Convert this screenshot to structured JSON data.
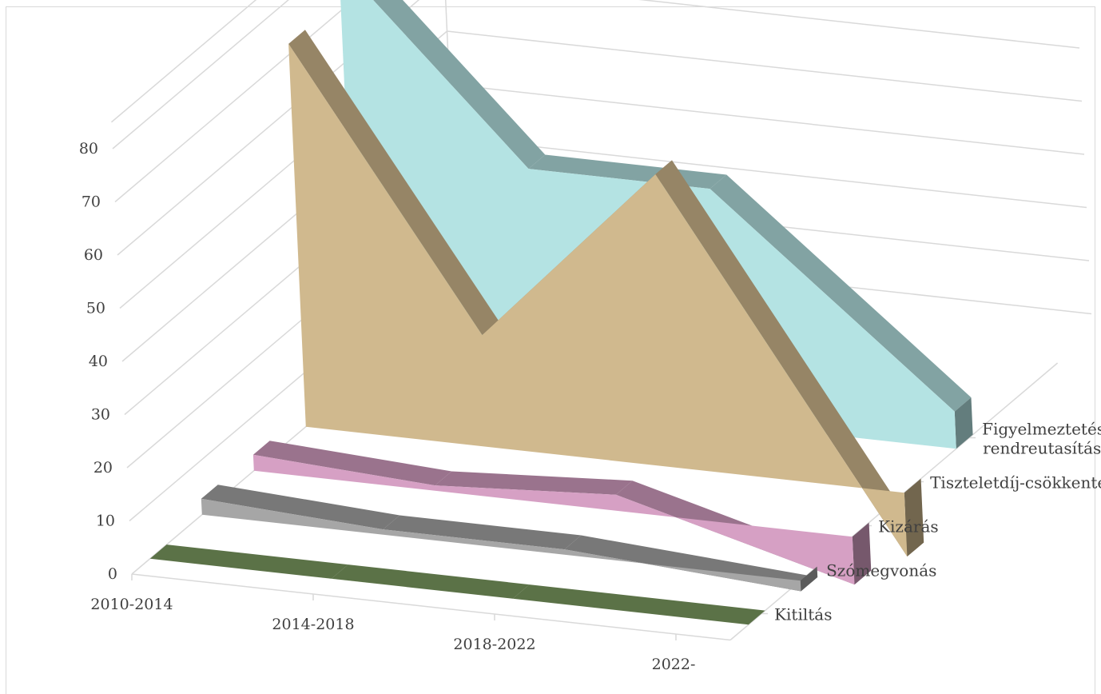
{
  "chart_data": {
    "type": "area",
    "subtype": "3d-area",
    "title": "",
    "categories": [
      "2010-2014",
      "2014-2018",
      "2018-2022",
      "2022-"
    ],
    "ylim": [
      0,
      80
    ],
    "yticks": [
      0,
      10,
      20,
      30,
      40,
      50,
      60,
      70,
      80
    ],
    "grid": true,
    "series": [
      {
        "name": "Kitiltás",
        "values": [
          0,
          0,
          0,
          0
        ],
        "color": "#7f9f63"
      },
      {
        "name": "Szómegvonás",
        "values": [
          3,
          1,
          1,
          -2
        ],
        "color": "#a6a6a6"
      },
      {
        "name": "Kizárás",
        "values": [
          3,
          1,
          3,
          -9
        ],
        "color": "#d6a0c4"
      },
      {
        "name": "Tiszteletdíj-csökkentés",
        "values": [
          72,
          21,
          55,
          -12
        ],
        "color": "#d0b98e"
      },
      {
        "name": "Figyelmeztetés,\nrendreutasítás",
        "name_lines": [
          "Figyelmeztetés,",
          "rendreutasítás"
        ],
        "values": [
          79,
          44,
          44,
          7
        ],
        "color": "#b4e3e3"
      }
    ]
  }
}
